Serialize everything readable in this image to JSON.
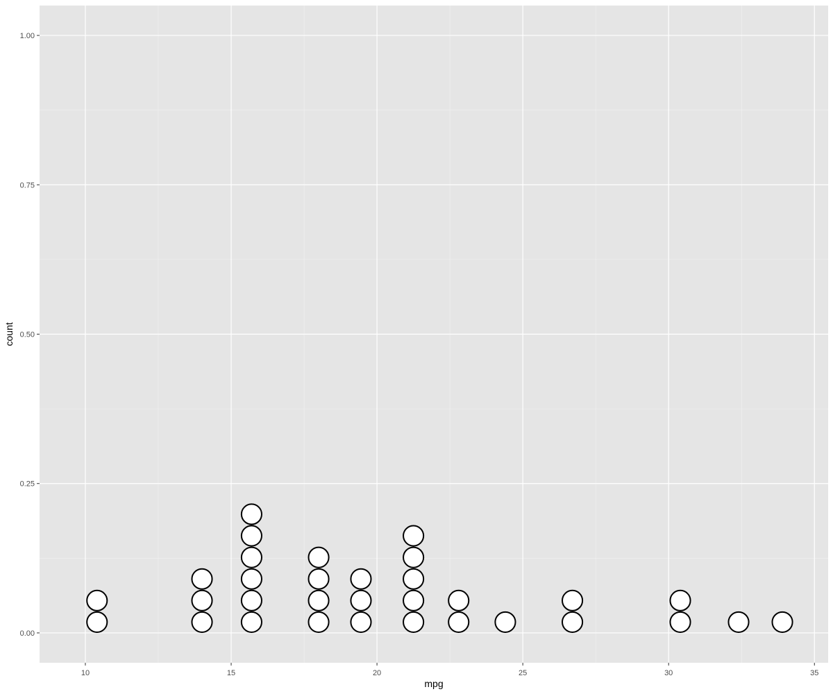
{
  "chart_data": {
    "type": "dotplot",
    "xlabel": "mpg",
    "ylabel": "count",
    "xlim": [
      8.43,
      35.47
    ],
    "ylim": [
      -0.05,
      1.05
    ],
    "x_ticks": [
      10,
      15,
      20,
      25,
      30,
      35
    ],
    "x_tick_labels": [
      "10",
      "15",
      "20",
      "25",
      "30",
      "35"
    ],
    "y_ticks": [
      0,
      0.25,
      0.5,
      0.75,
      1
    ],
    "y_tick_labels": [
      "0.00",
      "0.25",
      "0.50",
      "0.75",
      "1.00"
    ],
    "grid": true,
    "stacks": [
      {
        "x": 10.4,
        "count": 2
      },
      {
        "x": 14.0,
        "count": 3
      },
      {
        "x": 15.7,
        "count": 6
      },
      {
        "x": 18.0,
        "count": 4
      },
      {
        "x": 19.45,
        "count": 3
      },
      {
        "x": 21.25,
        "count": 5
      },
      {
        "x": 22.8,
        "count": 2
      },
      {
        "x": 24.4,
        "count": 1
      },
      {
        "x": 26.7,
        "count": 2
      },
      {
        "x": 30.4,
        "count": 2
      },
      {
        "x": 32.4,
        "count": 1
      },
      {
        "x": 33.9,
        "count": 1
      }
    ],
    "colors": {
      "panel": "#e5e5e5",
      "grid_major": "#ffffff",
      "grid_minor": "#f2f2f2",
      "dot_fill": "#ffffff",
      "dot_stroke": "#000000"
    }
  }
}
